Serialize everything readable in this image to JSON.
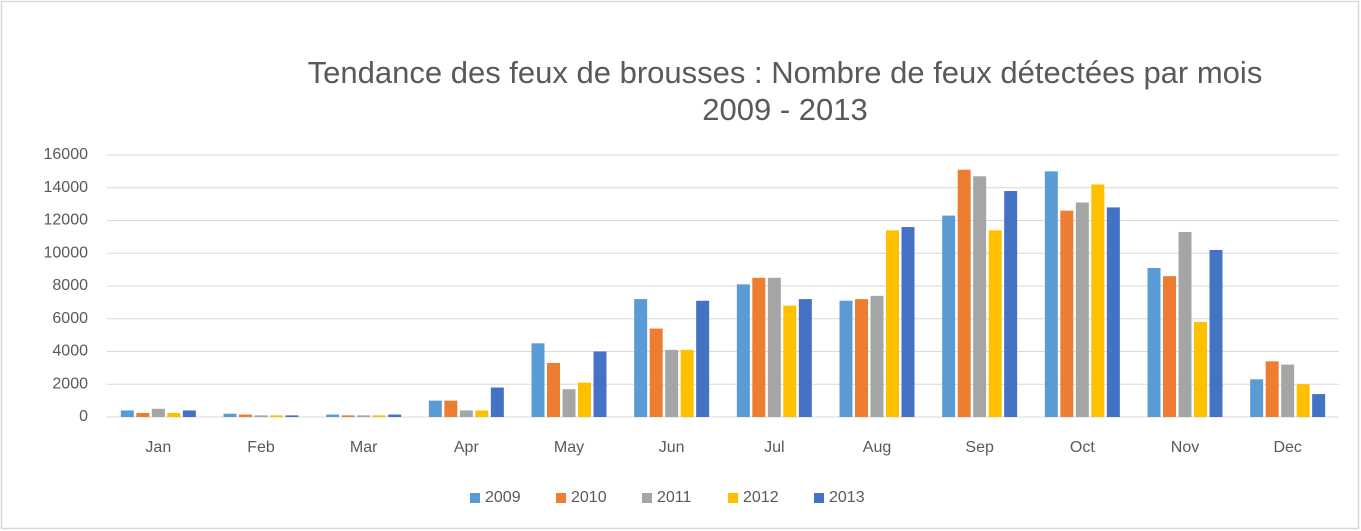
{
  "chart_data": {
    "type": "bar",
    "title": "Tendance des feux de brousses : Nombre de feux détectées par mois",
    "subtitle": "2009 - 2013",
    "categories": [
      "Jan",
      "Feb",
      "Mar",
      "Apr",
      "May",
      "Jun",
      "Jul",
      "Aug",
      "Sep",
      "Oct",
      "Nov",
      "Dec"
    ],
    "series": [
      {
        "name": "2009",
        "color": "#5b9bd5",
        "values": [
          400,
          200,
          150,
          1000,
          4500,
          7200,
          8100,
          7100,
          12300,
          15000,
          9100,
          2300
        ]
      },
      {
        "name": "2010",
        "color": "#ed7d31",
        "values": [
          250,
          150,
          100,
          1000,
          3300,
          5400,
          8500,
          7200,
          15100,
          12600,
          8600,
          3400
        ]
      },
      {
        "name": "2011",
        "color": "#a5a5a5",
        "values": [
          500,
          100,
          100,
          400,
          1700,
          4100,
          8500,
          7400,
          14700,
          13100,
          11300,
          3200
        ]
      },
      {
        "name": "2012",
        "color": "#ffc000",
        "values": [
          250,
          100,
          100,
          400,
          2100,
          4100,
          6800,
          11400,
          11400,
          14200,
          5800,
          2000
        ]
      },
      {
        "name": "2013",
        "color": "#4472c4",
        "values": [
          400,
          100,
          150,
          1800,
          4000,
          7100,
          7200,
          11600,
          13800,
          12800,
          10200,
          1400
        ]
      }
    ],
    "ylim": [
      0,
      16000
    ],
    "yticks": [
      0,
      2000,
      4000,
      6000,
      8000,
      10000,
      12000,
      14000,
      16000
    ],
    "grid": true,
    "legend": "bottom"
  }
}
